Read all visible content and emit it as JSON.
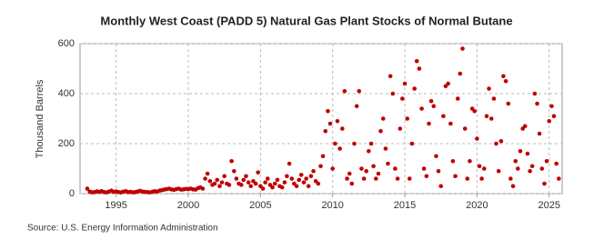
{
  "chart_data": {
    "type": "scatter",
    "title": "Monthly West Coast (PADD 5) Natural Gas Plant Stocks of Normal Butane",
    "y_label": "Thousand Barrels",
    "source": "Source: U.S. Energy Information Administration",
    "color": "#c00000",
    "grid": true,
    "xlim": [
      1992.5,
      2025.9
    ],
    "ylim": [
      0,
      600
    ],
    "xticks": [
      1995,
      2000,
      2005,
      2010,
      2015,
      2020,
      2025
    ],
    "yticks": [
      0,
      200,
      400,
      600
    ],
    "x": [
      1993,
      1993.17,
      1993.33,
      1993.5,
      1993.67,
      1993.83,
      1994,
      1994.17,
      1994.33,
      1994.5,
      1994.67,
      1994.83,
      1995,
      1995.17,
      1995.33,
      1995.5,
      1995.67,
      1995.83,
      1996,
      1996.17,
      1996.33,
      1996.5,
      1996.67,
      1996.83,
      1997,
      1997.17,
      1997.33,
      1997.5,
      1997.67,
      1997.83,
      1998,
      1998.17,
      1998.33,
      1998.5,
      1998.67,
      1998.83,
      1999,
      1999.17,
      1999.33,
      1999.5,
      1999.67,
      1999.83,
      2000,
      2000.17,
      2000.33,
      2000.5,
      2000.67,
      2000.83,
      2001,
      2001.17,
      2001.33,
      2001.5,
      2001.67,
      2001.83,
      2002,
      2002.17,
      2002.33,
      2002.5,
      2002.67,
      2002.83,
      2003,
      2003.17,
      2003.33,
      2003.5,
      2003.67,
      2003.83,
      2004,
      2004.17,
      2004.33,
      2004.5,
      2004.67,
      2004.83,
      2005,
      2005.17,
      2005.33,
      2005.5,
      2005.67,
      2005.83,
      2006,
      2006.17,
      2006.33,
      2006.5,
      2006.67,
      2006.83,
      2007,
      2007.17,
      2007.33,
      2007.5,
      2007.67,
      2007.83,
      2008,
      2008.17,
      2008.33,
      2008.5,
      2008.67,
      2008.83,
      2009,
      2009.17,
      2009.33,
      2009.5,
      2009.67,
      2009.83,
      2010,
      2010.17,
      2010.33,
      2010.5,
      2010.67,
      2010.83,
      2011,
      2011.17,
      2011.33,
      2011.5,
      2011.67,
      2011.83,
      2012,
      2012.17,
      2012.33,
      2012.5,
      2012.67,
      2012.83,
      2013,
      2013.17,
      2013.33,
      2013.5,
      2013.67,
      2013.83,
      2014,
      2014.17,
      2014.33,
      2014.5,
      2014.67,
      2014.83,
      2015,
      2015.17,
      2015.33,
      2015.5,
      2015.67,
      2015.83,
      2016,
      2016.17,
      2016.33,
      2016.5,
      2016.67,
      2016.83,
      2017,
      2017.17,
      2017.33,
      2017.5,
      2017.67,
      2017.83,
      2018,
      2018.17,
      2018.33,
      2018.5,
      2018.67,
      2018.83,
      2019,
      2019.17,
      2019.33,
      2019.5,
      2019.67,
      2019.83,
      2020,
      2020.17,
      2020.33,
      2020.5,
      2020.67,
      2020.83,
      2021,
      2021.17,
      2021.33,
      2021.5,
      2021.67,
      2021.83,
      2022,
      2022.17,
      2022.33,
      2022.5,
      2022.67,
      2022.83,
      2023,
      2023.17,
      2023.33,
      2023.5,
      2023.67,
      2023.83,
      2024,
      2024.17,
      2024.33,
      2024.5,
      2024.67,
      2024.83,
      2025,
      2025.17,
      2025.33,
      2025.5,
      2025.67
    ],
    "values": [
      20,
      8,
      5,
      6,
      9,
      7,
      10,
      6,
      5,
      8,
      12,
      7,
      9,
      6,
      5,
      8,
      10,
      6,
      7,
      5,
      6,
      9,
      11,
      8,
      7,
      6,
      5,
      7,
      10,
      8,
      12,
      14,
      16,
      18,
      20,
      17,
      15,
      18,
      20,
      16,
      17,
      19,
      18,
      20,
      17,
      16,
      22,
      25,
      20,
      60,
      80,
      50,
      35,
      40,
      55,
      30,
      45,
      70,
      40,
      35,
      130,
      90,
      60,
      40,
      35,
      55,
      70,
      45,
      30,
      50,
      40,
      85,
      30,
      20,
      45,
      60,
      35,
      25,
      40,
      55,
      30,
      25,
      45,
      70,
      120,
      60,
      40,
      30,
      55,
      75,
      45,
      60,
      30,
      70,
      90,
      50,
      40,
      110,
      150,
      250,
      330,
      280,
      100,
      200,
      290,
      180,
      260,
      410,
      60,
      80,
      40,
      200,
      350,
      410,
      100,
      60,
      90,
      170,
      200,
      110,
      60,
      80,
      250,
      300,
      180,
      120,
      470,
      400,
      100,
      60,
      260,
      380,
      440,
      300,
      60,
      200,
      420,
      530,
      500,
      340,
      100,
      70,
      280,
      370,
      350,
      150,
      90,
      30,
      310,
      430,
      440,
      280,
      130,
      70,
      380,
      480,
      580,
      260,
      60,
      130,
      340,
      330,
      220,
      110,
      60,
      100,
      310,
      420,
      300,
      380,
      200,
      90,
      210,
      470,
      450,
      360,
      60,
      30,
      130,
      100,
      170,
      260,
      270,
      160,
      90,
      110,
      400,
      360,
      240,
      100,
      40,
      130,
      290,
      350,
      310,
      120,
      60
    ]
  }
}
